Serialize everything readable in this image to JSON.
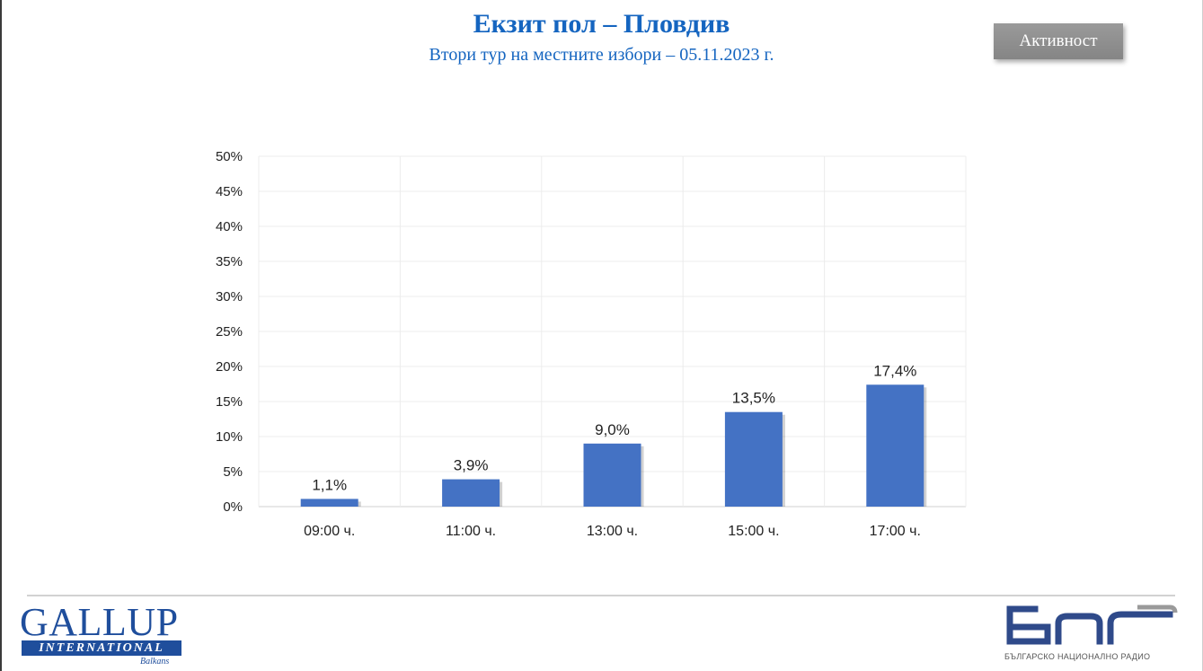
{
  "header": {
    "title": "Екзит пол – Пловдив",
    "subtitle": "Втори тур на местните избори – 05.11.2023  г."
  },
  "toolbar": {
    "activity_label": "Активност"
  },
  "chart_data": {
    "type": "bar",
    "categories": [
      "09:00 ч.",
      "11:00 ч.",
      "13:00 ч.",
      "15:00 ч.",
      "17:00 ч."
    ],
    "values": [
      1.1,
      3.9,
      9.0,
      13.5,
      17.4
    ],
    "data_labels": [
      "1,1%",
      "3,9%",
      "9,0%",
      "13,5%",
      "17,4%"
    ],
    "y_ticks": [
      "0%",
      "5%",
      "10%",
      "15%",
      "20%",
      "25%",
      "30%",
      "35%",
      "40%",
      "45%",
      "50%"
    ],
    "ylim": [
      0,
      50
    ],
    "grid": true,
    "bar_color": "#4472c4"
  },
  "footer": {
    "gallup_name": "GALLUP",
    "gallup_sub": "INTERNATIONAL",
    "gallup_region": "Balkans",
    "bnr_tagline": "БЪЛГАРСКО НАЦИОНАЛНО РАДИО"
  },
  "colors": {
    "title": "#1565c0",
    "gallup_brand": "#1f4e9c",
    "bnr_brand": "#2f4a8a",
    "button": "#8c8c8c"
  }
}
